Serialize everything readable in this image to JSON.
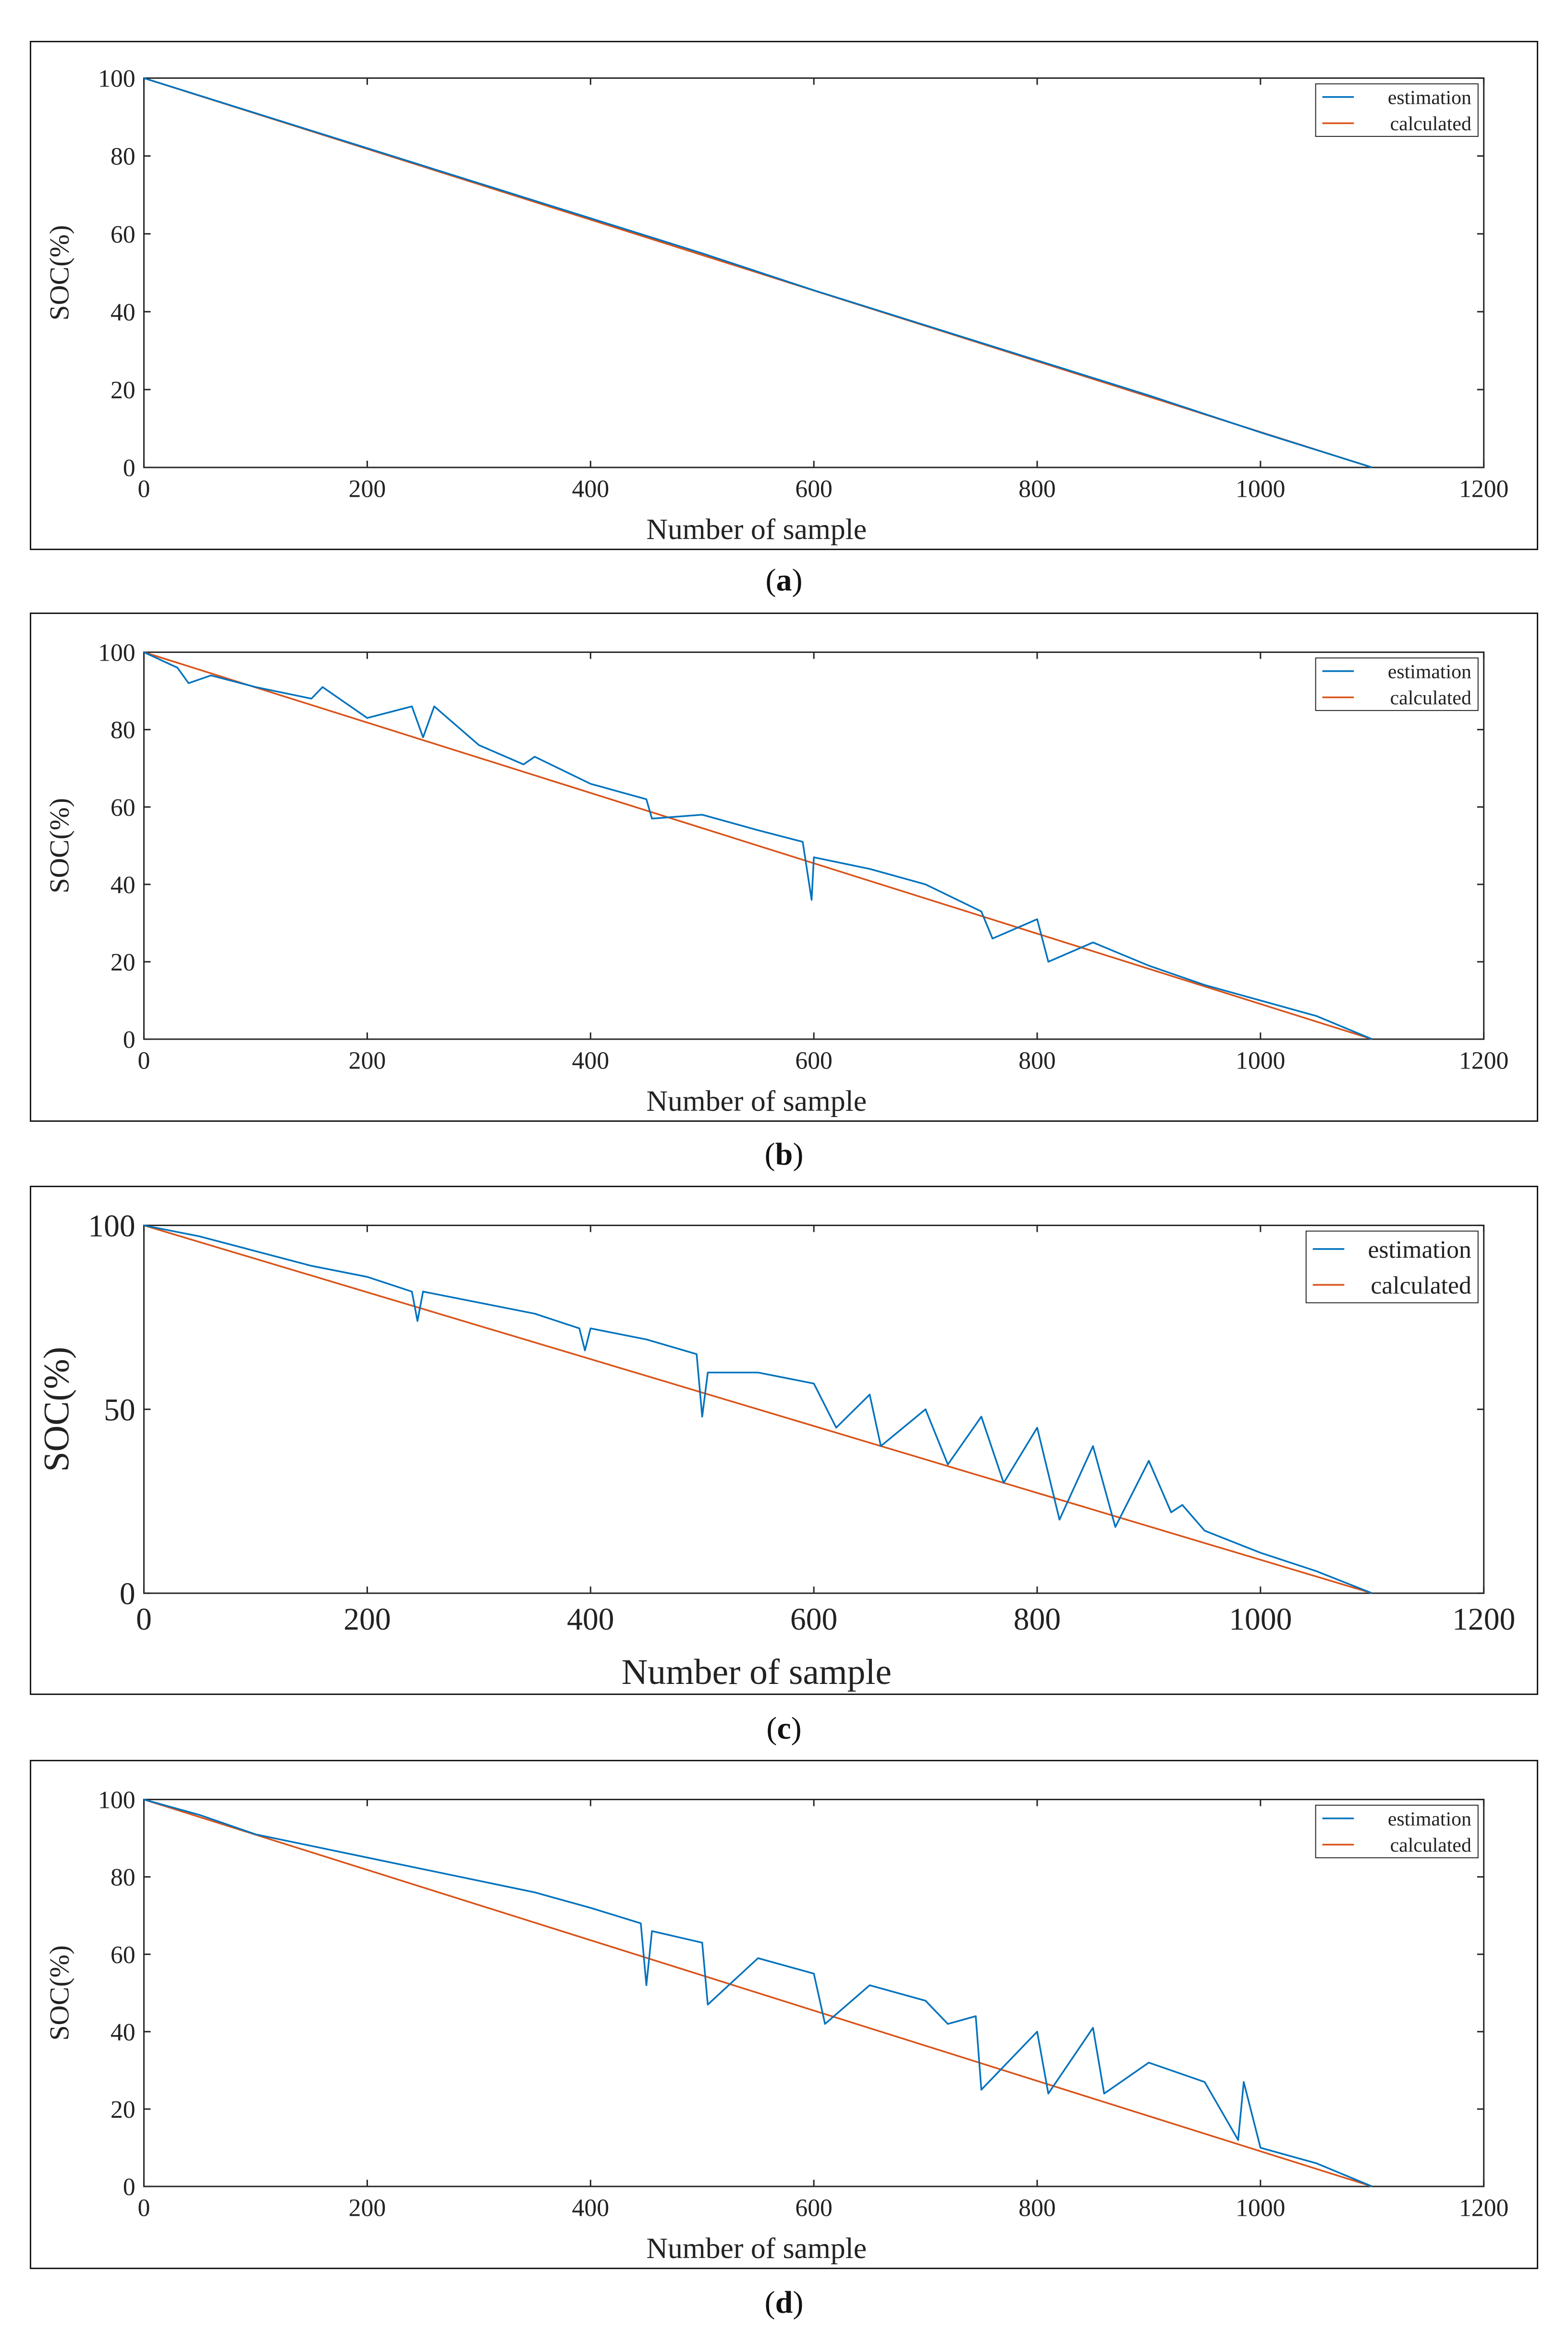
{
  "chart_data": [
    {
      "id": "a",
      "type": "line",
      "caption_open": "(",
      "caption_letter": "a",
      "caption_close": ")",
      "xlabel": "Number of sample",
      "ylabel": "SOC(%)",
      "xlim": [
        0,
        1200
      ],
      "ylim": [
        0,
        100
      ],
      "xticks": [
        0,
        200,
        400,
        600,
        800,
        1000,
        1200
      ],
      "yticks": [
        0,
        20,
        40,
        60,
        80,
        100
      ],
      "legend": [
        "estimation",
        "calculated"
      ],
      "legend_position": "top-right",
      "series": [
        {
          "name": "estimation",
          "color": "#0072BD",
          "x": [
            0,
            100,
            200,
            300,
            400,
            500,
            600,
            700,
            800,
            900,
            1000,
            1100
          ],
          "y": [
            100,
            91,
            82,
            73,
            64,
            55,
            45.5,
            36.5,
            27.5,
            18.5,
            9,
            0
          ]
        },
        {
          "name": "calculated",
          "color": "#D95319",
          "x": [
            0,
            1100
          ],
          "y": [
            100,
            0
          ]
        }
      ]
    },
    {
      "id": "b",
      "type": "line",
      "caption_open": "(",
      "caption_letter": "b",
      "caption_close": ")",
      "xlabel": "Number of sample",
      "ylabel": "SOC(%)",
      "xlim": [
        0,
        1200
      ],
      "ylim": [
        0,
        100
      ],
      "xticks": [
        0,
        200,
        400,
        600,
        800,
        1000,
        1200
      ],
      "yticks": [
        0,
        20,
        40,
        60,
        80,
        100
      ],
      "legend": [
        "estimation",
        "calculated"
      ],
      "legend_position": "top-right",
      "series": [
        {
          "name": "estimation",
          "color": "#0072BD",
          "x": [
            0,
            30,
            40,
            60,
            100,
            150,
            160,
            200,
            240,
            250,
            260,
            300,
            340,
            350,
            400,
            450,
            455,
            500,
            550,
            590,
            598,
            600,
            650,
            700,
            750,
            760,
            800,
            810,
            850,
            900,
            950,
            1000,
            1050,
            1100
          ],
          "y": [
            100,
            96,
            92,
            94,
            91,
            88,
            91,
            83,
            86,
            78,
            86,
            76,
            71,
            73,
            66,
            62,
            57,
            58,
            54,
            51,
            36,
            47,
            44,
            40,
            33,
            26,
            31,
            20,
            25,
            19,
            14,
            10,
            6,
            0
          ]
        },
        {
          "name": "calculated",
          "color": "#D95319",
          "x": [
            0,
            1100
          ],
          "y": [
            100,
            0
          ]
        }
      ]
    },
    {
      "id": "c",
      "type": "line",
      "caption_open": "(",
      "caption_letter": "c",
      "caption_close": ")",
      "xlabel": "Number of sample",
      "ylabel": "SOC(%)",
      "xlim": [
        0,
        1200
      ],
      "ylim": [
        0,
        100
      ],
      "xticks": [
        0,
        200,
        400,
        600,
        800,
        1000,
        1200
      ],
      "yticks": [
        0,
        50,
        100
      ],
      "legend": [
        "estimation",
        "calculated"
      ],
      "legend_position": "top-right",
      "series": [
        {
          "name": "estimation",
          "color": "#0072BD",
          "x": [
            0,
            50,
            100,
            150,
            200,
            240,
            245,
            250,
            300,
            350,
            390,
            395,
            400,
            450,
            495,
            500,
            505,
            550,
            600,
            620,
            650,
            660,
            700,
            720,
            750,
            770,
            800,
            820,
            850,
            870,
            900,
            920,
            930,
            950,
            1000,
            1050,
            1100
          ],
          "y": [
            100,
            97,
            93,
            89,
            86,
            82,
            74,
            82,
            79,
            76,
            72,
            66,
            72,
            69,
            65,
            48,
            60,
            60,
            57,
            45,
            54,
            40,
            50,
            35,
            48,
            30,
            45,
            20,
            40,
            18,
            36,
            22,
            24,
            17,
            11,
            6,
            0
          ]
        },
        {
          "name": "calculated",
          "color": "#D95319",
          "x": [
            0,
            1100
          ],
          "y": [
            100,
            0
          ]
        }
      ]
    },
    {
      "id": "d",
      "type": "line",
      "caption_open": "(",
      "caption_letter": "d",
      "caption_close": ")",
      "xlabel": "Number of sample",
      "ylabel": "SOC(%)",
      "xlim": [
        0,
        1200
      ],
      "ylim": [
        0,
        100
      ],
      "xticks": [
        0,
        200,
        400,
        600,
        800,
        1000,
        1200
      ],
      "yticks": [
        0,
        20,
        40,
        60,
        80,
        100
      ],
      "legend": [
        "estimation",
        "calculated"
      ],
      "legend_position": "top-right",
      "series": [
        {
          "name": "estimation",
          "color": "#0072BD",
          "x": [
            0,
            50,
            100,
            150,
            200,
            250,
            300,
            350,
            400,
            445,
            450,
            455,
            500,
            505,
            550,
            600,
            610,
            650,
            700,
            720,
            745,
            750,
            800,
            810,
            850,
            860,
            900,
            950,
            980,
            985,
            1000,
            1050,
            1100
          ],
          "y": [
            100,
            96,
            91,
            88,
            85,
            82,
            79,
            76,
            72,
            68,
            52,
            66,
            63,
            47,
            59,
            55,
            42,
            52,
            48,
            42,
            44,
            25,
            40,
            24,
            41,
            24,
            32,
            27,
            12,
            27,
            10,
            6,
            0
          ]
        },
        {
          "name": "calculated",
          "color": "#D95319",
          "x": [
            0,
            1100
          ],
          "y": [
            100,
            0
          ]
        }
      ]
    }
  ]
}
